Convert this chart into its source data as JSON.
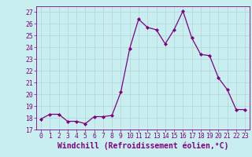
{
  "x": [
    0,
    1,
    2,
    3,
    4,
    5,
    6,
    7,
    8,
    9,
    10,
    11,
    12,
    13,
    14,
    15,
    16,
    17,
    18,
    19,
    20,
    21,
    22,
    23
  ],
  "y": [
    17.9,
    18.3,
    18.3,
    17.7,
    17.7,
    17.5,
    18.1,
    18.1,
    18.2,
    20.2,
    23.9,
    26.4,
    25.7,
    25.5,
    24.3,
    25.5,
    27.1,
    24.8,
    23.4,
    23.3,
    21.4,
    20.4,
    18.7,
    18.7
  ],
  "line_color": "#800080",
  "marker": "D",
  "marker_size": 2.2,
  "bg_color": "#c8eef0",
  "grid_color": "#b0d4d8",
  "xlabel": "Windchill (Refroidissement éolien,°C)",
  "xlim": [
    -0.5,
    23.5
  ],
  "ylim": [
    17,
    27.5
  ],
  "yticks": [
    17,
    18,
    19,
    20,
    21,
    22,
    23,
    24,
    25,
    26,
    27
  ],
  "xticks": [
    0,
    1,
    2,
    3,
    4,
    5,
    6,
    7,
    8,
    9,
    10,
    11,
    12,
    13,
    14,
    15,
    16,
    17,
    18,
    19,
    20,
    21,
    22,
    23
  ],
  "tick_color": "#800080",
  "tick_fontsize": 5.8,
  "xlabel_fontsize": 7.0
}
